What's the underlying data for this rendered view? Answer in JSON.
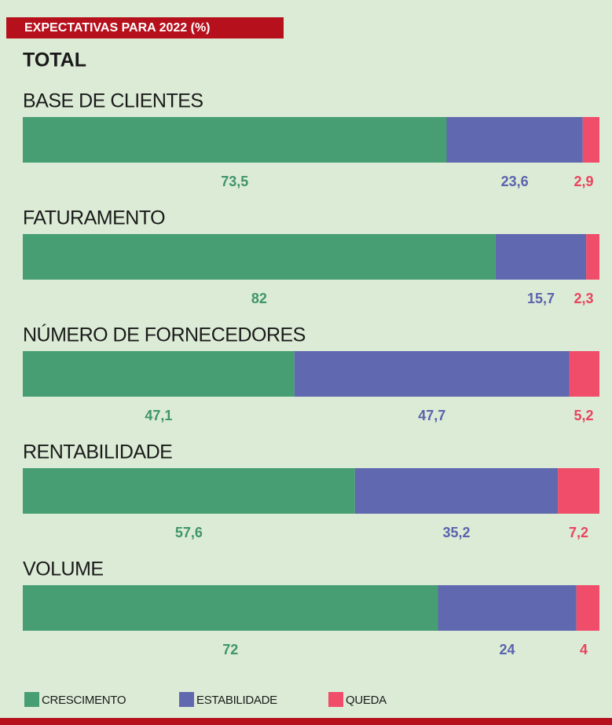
{
  "chart_data": {
    "type": "bar",
    "orientation": "horizontal",
    "stacked": true,
    "title": "EXPECTATIVAS PARA 2022 (%)",
    "subtitle": "TOTAL",
    "categories": [
      "BASE DE CLIENTES",
      "FATURAMENTO",
      "NÚMERO DE FORNECEDORES",
      "RENTABILIDADE",
      "VOLUME"
    ],
    "series": [
      {
        "name": "CRESCIMENTO",
        "color": "#479e72",
        "label_color": "#3f9569",
        "values": [
          73.5,
          82,
          47.1,
          57.6,
          72
        ],
        "value_labels": [
          "73,5",
          "82",
          "47,1",
          "57,6",
          "72"
        ]
      },
      {
        "name": "ESTABILIDADE",
        "color": "#6068b0",
        "label_color": "#5a63ad",
        "values": [
          23.6,
          15.7,
          47.7,
          35.2,
          24
        ],
        "value_labels": [
          "23,6",
          "15,7",
          "47,7",
          "35,2",
          "24"
        ]
      },
      {
        "name": "QUEDA",
        "color": "#ef4d6a",
        "label_color": "#e8445f",
        "values": [
          2.9,
          2.3,
          5.2,
          7.2,
          4
        ],
        "value_labels": [
          "2,9",
          "2,3",
          "5,2",
          "7,2",
          "4"
        ]
      }
    ],
    "xlim": [
      0,
      100
    ],
    "legend": "bottom-left"
  }
}
